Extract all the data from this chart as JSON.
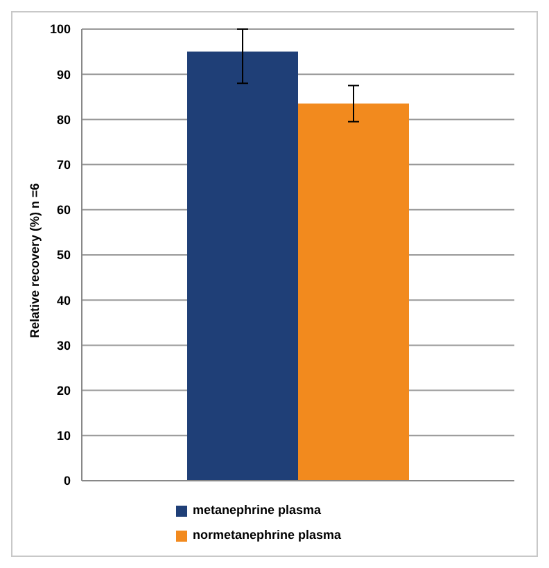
{
  "chart_data": {
    "type": "bar",
    "ylabel": "Relative recovery (%) n =6",
    "categories": [
      null
    ],
    "series": [
      {
        "name": "metanephrine plasma",
        "color": "#1f3f77",
        "values": [
          95
        ],
        "errors": [
          [
            88,
            100
          ]
        ]
      },
      {
        "name": "normetanephrine plasma",
        "color": "#f28a1e",
        "values": [
          83.5
        ],
        "errors": [
          [
            79.5,
            87.5
          ]
        ]
      }
    ],
    "ylim": [
      0,
      100
    ],
    "yticks": [
      0,
      10,
      20,
      30,
      40,
      50,
      60,
      70,
      80,
      90,
      100
    ],
    "grid": "y",
    "legend": "bottom"
  }
}
